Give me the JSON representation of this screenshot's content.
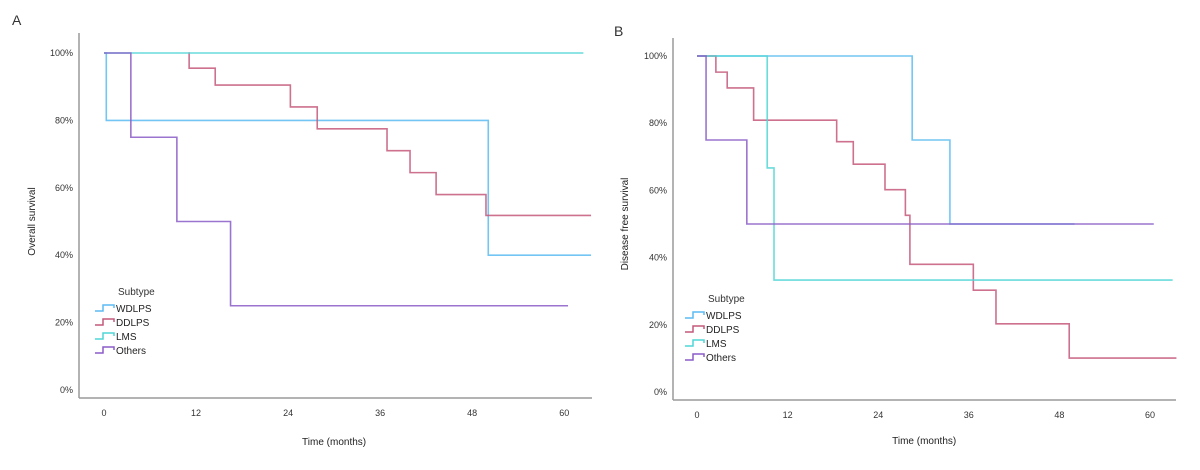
{
  "chart_data": [
    {
      "type": "line",
      "subtype": "kaplan-meier-step",
      "panel": "A",
      "title": "",
      "xlabel": "Time (months)",
      "ylabel": "Overall survival",
      "xlim": [
        -3.5,
        63.5
      ],
      "ylim": [
        -5,
        105
      ],
      "xticks": [
        0,
        12,
        24,
        36,
        48,
        60
      ],
      "xtick_labels": [
        "0",
        "12",
        "24",
        "36",
        "48",
        "60"
      ],
      "yticks": [
        0,
        20,
        40,
        60,
        80,
        100
      ],
      "ytick_labels": [
        "0%",
        "20%",
        "40%",
        "60%",
        "80%",
        "100%"
      ],
      "grid": false,
      "legend": {
        "title": "Subtype",
        "position": "bottom-left"
      },
      "series": [
        {
          "name": "WDLPS",
          "color": "#5bbcf2",
          "x": [
            0,
            0.3,
            50.1,
            63.5
          ],
          "y": [
            100,
            80,
            40,
            40
          ]
        },
        {
          "name": "DDLPS",
          "color": "#c4587a",
          "x": [
            11,
            11.1,
            14.5,
            24.3,
            27.8,
            36.9,
            39.9,
            43.3,
            49.8,
            63.5
          ],
          "y": [
            100,
            95.5,
            90.5,
            84,
            77.5,
            71,
            64.5,
            58,
            51.8,
            51.8
          ]
        },
        {
          "name": "LMS",
          "color": "#4fd6d6",
          "x": [
            0,
            62.5
          ],
          "y": [
            100,
            100
          ]
        },
        {
          "name": "Others",
          "color": "#8a5cc7",
          "x": [
            0,
            3.5,
            9.5,
            16.5,
            60.5
          ],
          "y": [
            100,
            75,
            50,
            25,
            25
          ]
        }
      ]
    },
    {
      "type": "line",
      "subtype": "kaplan-meier-step",
      "panel": "B",
      "title": "",
      "xlabel": "Time (months)",
      "ylabel": "Disease free survival",
      "xlim": [
        -3.5,
        63.5
      ],
      "ylim": [
        -5,
        105
      ],
      "xticks": [
        0,
        12,
        24,
        36,
        48,
        60
      ],
      "xtick_labels": [
        "0",
        "12",
        "24",
        "36",
        "48",
        "60"
      ],
      "yticks": [
        0,
        20,
        40,
        60,
        80,
        100
      ],
      "ytick_labels": [
        "0%",
        "20%",
        "40%",
        "60%",
        "80%",
        "100%"
      ],
      "grid": false,
      "legend": {
        "title": "Subtype",
        "position": "bottom-left"
      },
      "series": [
        {
          "name": "WDLPS",
          "color": "#5bbcf2",
          "x": [
            0,
            28.5,
            33.5,
            50
          ],
          "y": [
            100,
            75,
            50,
            50
          ]
        },
        {
          "name": "DDLPS",
          "color": "#c4587a",
          "x": [
            0,
            2.5,
            4,
            7.5,
            18.5,
            20.7,
            24.9,
            27.6,
            28.2,
            36.6,
            39.6,
            49.3,
            63.5
          ],
          "y": [
            100,
            95.2,
            90.5,
            80.9,
            74.5,
            67.8,
            60.2,
            52.6,
            38,
            30.3,
            20.3,
            10.1,
            10.1
          ]
        },
        {
          "name": "LMS",
          "color": "#4fd6d6",
          "x": [
            0,
            9.3,
            10.2,
            63
          ],
          "y": [
            100,
            66.7,
            33.3,
            33.3
          ]
        },
        {
          "name": "Others",
          "color": "#8a5cc7",
          "x": [
            0,
            1.2,
            6.6,
            60.5
          ],
          "y": [
            100,
            75,
            50,
            50
          ]
        }
      ]
    }
  ],
  "axis_color": "#9a9a9a"
}
